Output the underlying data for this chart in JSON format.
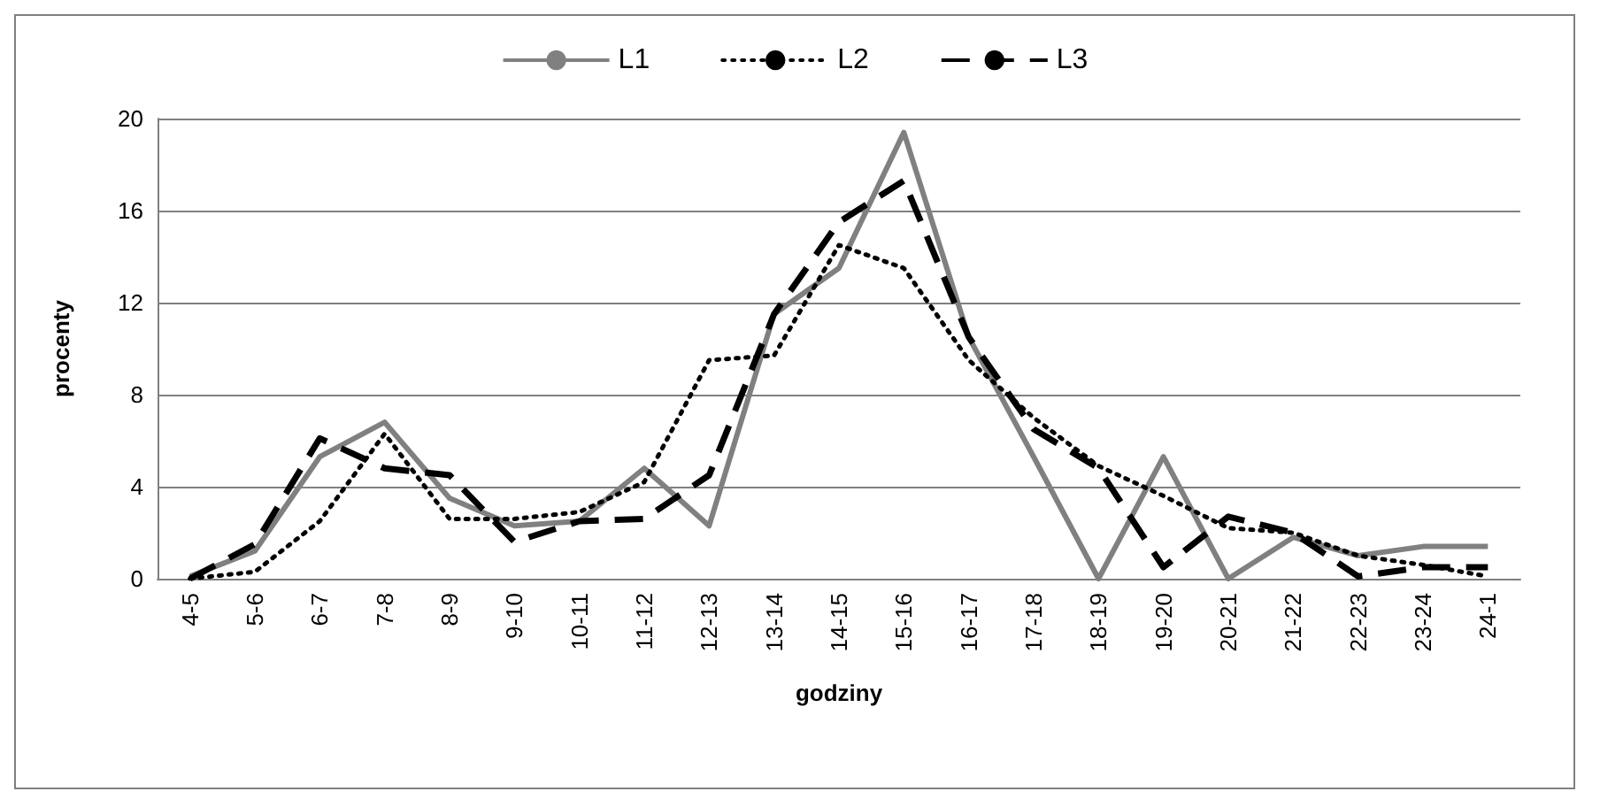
{
  "chart_data": {
    "type": "line",
    "xlabel": "godziny",
    "ylabel": "procenty",
    "categories": [
      "4-5",
      "5-6",
      "6-7",
      "7-8",
      "8-9",
      "9-10",
      "10-11",
      "11-12",
      "12-13",
      "13-14",
      "14-15",
      "15-16",
      "16-17",
      "17-18",
      "18-19",
      "19-20",
      "20-21",
      "21-22",
      "22-23",
      "23-24",
      "24-1"
    ],
    "series": [
      {
        "name": "L1",
        "color": "#808080",
        "line_style": "solid",
        "values": [
          0.1,
          1.2,
          5.3,
          6.8,
          3.5,
          2.3,
          2.5,
          4.8,
          2.3,
          11.5,
          13.5,
          19.4,
          10.5,
          5.3,
          0,
          5.3,
          0,
          1.8,
          1.0,
          1.4,
          1.4
        ]
      },
      {
        "name": "L2",
        "color": "#000000",
        "line_style": "dotted",
        "values": [
          0,
          0.3,
          2.5,
          6.3,
          2.6,
          2.6,
          2.9,
          4.2,
          9.5,
          9.7,
          14.5,
          13.5,
          9.5,
          7.0,
          4.9,
          3.6,
          2.2,
          2.0,
          1.0,
          0.6,
          0.1
        ]
      },
      {
        "name": "L3",
        "color": "#000000",
        "line_style": "dashed",
        "values": [
          0,
          1.5,
          6.1,
          4.8,
          4.5,
          1.6,
          2.5,
          2.6,
          4.5,
          11.5,
          15.5,
          17.3,
          10.5,
          6.5,
          4.8,
          0.5,
          2.7,
          2.0,
          0.1,
          0.5,
          0.5
        ]
      }
    ],
    "ylim": [
      0,
      20
    ],
    "yticks": [
      0,
      4,
      8,
      12,
      16,
      20
    ],
    "grid": "y",
    "legend": "top",
    "marker": "none"
  }
}
